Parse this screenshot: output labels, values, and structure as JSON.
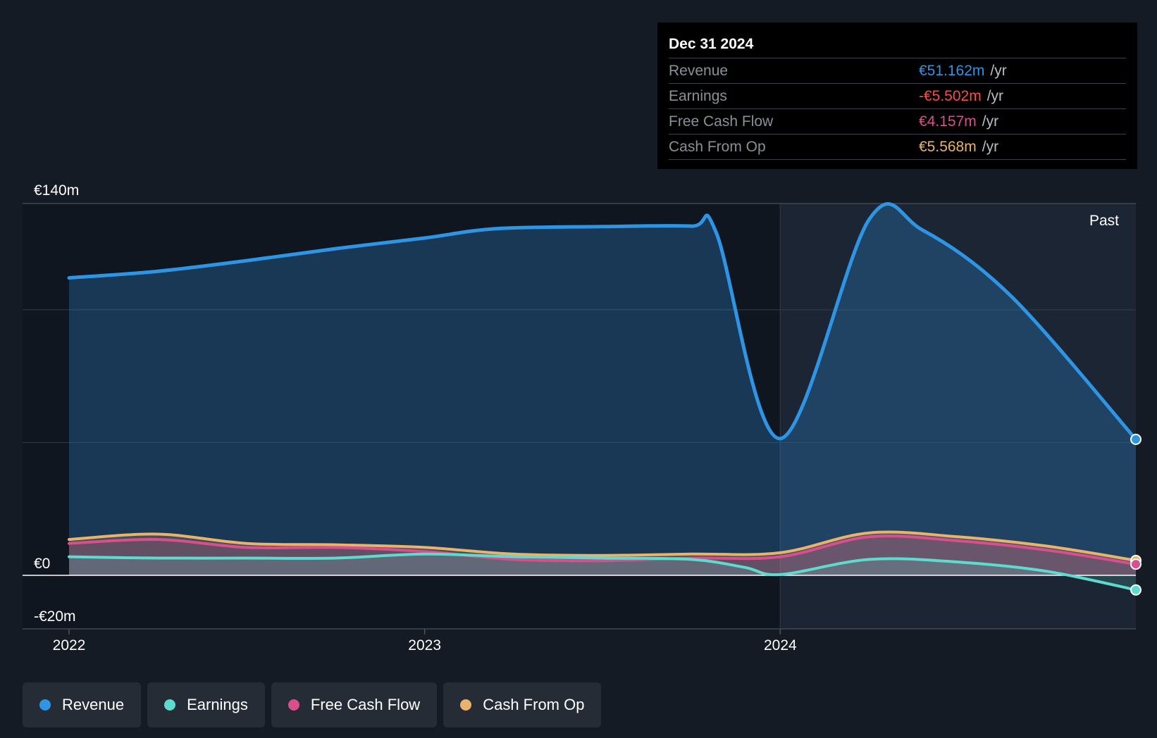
{
  "tooltip": {
    "date": "Dec 31 2024",
    "rows": [
      {
        "label": "Revenue",
        "value": "€51.162m",
        "unit": "/yr",
        "color": "#2d95e3"
      },
      {
        "label": "Earnings",
        "value": "-€5.502m",
        "unit": "/yr",
        "color": "#ff4a4a"
      },
      {
        "label": "Free Cash Flow",
        "value": "€4.157m",
        "unit": "/yr",
        "color": "#d94f8e"
      },
      {
        "label": "Cash From Op",
        "value": "€5.568m",
        "unit": "/yr",
        "color": "#e9b36b"
      }
    ]
  },
  "legend": [
    {
      "label": "Revenue",
      "color": "#2d95e3"
    },
    {
      "label": "Earnings",
      "color": "#5ddbcf"
    },
    {
      "label": "Free Cash Flow",
      "color": "#d94f8e"
    },
    {
      "label": "Cash From Op",
      "color": "#e9b36b"
    }
  ],
  "chart_data": {
    "type": "area",
    "y_tick_labels": [
      "€140m",
      "€0",
      "-€20m"
    ],
    "ylim": [
      -20,
      140
    ],
    "x_tick_labels": [
      "2022",
      "2023",
      "2024"
    ],
    "xlim": [
      2022.0,
      2025.0
    ],
    "past_label": "Past",
    "grid": true,
    "series": [
      {
        "name": "Revenue",
        "color": "#2d95e3",
        "points": [
          [
            2022.0,
            112
          ],
          [
            2022.25,
            114.5
          ],
          [
            2022.5,
            118.5
          ],
          [
            2022.75,
            123
          ],
          [
            2023.0,
            127
          ],
          [
            2023.2,
            130.5
          ],
          [
            2023.5,
            131.3
          ],
          [
            2023.75,
            131.5
          ],
          [
            2023.82,
            129
          ],
          [
            2024.0,
            51.5
          ],
          [
            2024.25,
            134
          ],
          [
            2024.4,
            130
          ],
          [
            2024.65,
            105
          ],
          [
            2025.0,
            51.2
          ]
        ]
      },
      {
        "name": "Earnings",
        "color": "#5ddbcf",
        "points": [
          [
            2022.0,
            7.0
          ],
          [
            2022.25,
            6.5
          ],
          [
            2022.5,
            6.5
          ],
          [
            2022.75,
            6.5
          ],
          [
            2023.0,
            8.0
          ],
          [
            2023.25,
            7.0
          ],
          [
            2023.5,
            6.5
          ],
          [
            2023.75,
            6.0
          ],
          [
            2023.9,
            3.0
          ],
          [
            2024.0,
            0.3
          ],
          [
            2024.25,
            6.0
          ],
          [
            2024.5,
            5.0
          ],
          [
            2024.75,
            1.5
          ],
          [
            2025.0,
            -5.5
          ]
        ]
      },
      {
        "name": "Free Cash Flow",
        "color": "#d94f8e",
        "points": [
          [
            2022.0,
            12.0
          ],
          [
            2022.25,
            13.5
          ],
          [
            2022.5,
            10.5
          ],
          [
            2022.75,
            10.5
          ],
          [
            2023.0,
            9.0
          ],
          [
            2023.25,
            6.0
          ],
          [
            2023.5,
            5.5
          ],
          [
            2023.75,
            6.5
          ],
          [
            2024.0,
            7.0
          ],
          [
            2024.25,
            14.5
          ],
          [
            2024.5,
            13.0
          ],
          [
            2024.75,
            9.5
          ],
          [
            2025.0,
            4.2
          ]
        ]
      },
      {
        "name": "Cash From Op",
        "color": "#e9b36b",
        "points": [
          [
            2022.0,
            13.5
          ],
          [
            2022.25,
            15.5
          ],
          [
            2022.5,
            12.0
          ],
          [
            2022.75,
            11.5
          ],
          [
            2023.0,
            10.5
          ],
          [
            2023.25,
            8.0
          ],
          [
            2023.5,
            7.5
          ],
          [
            2023.75,
            8.0
          ],
          [
            2024.0,
            8.5
          ],
          [
            2024.25,
            16.0
          ],
          [
            2024.5,
            14.5
          ],
          [
            2024.75,
            11.0
          ],
          [
            2025.0,
            5.6
          ]
        ]
      }
    ]
  }
}
